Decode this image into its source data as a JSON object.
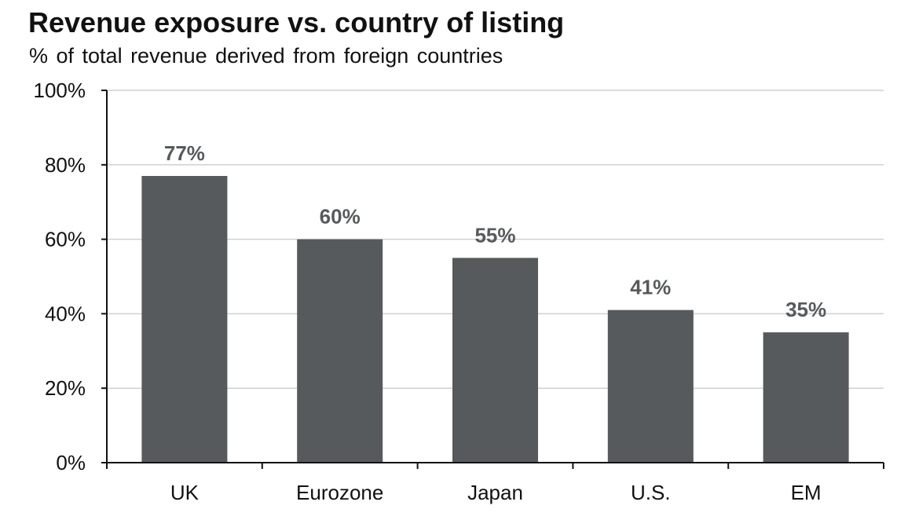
{
  "chart_data": {
    "type": "bar",
    "title": "Revenue exposure vs. country of listing",
    "subtitle": "% of total revenue  derived  from foreign  countries",
    "categories": [
      "UK",
      "Eurozone",
      "Japan",
      "U.S.",
      "EM"
    ],
    "values": [
      77,
      60,
      55,
      41,
      35
    ],
    "data_labels": [
      "77%",
      "60%",
      "55%",
      "41%",
      "35%"
    ],
    "ylim": [
      0,
      100
    ],
    "yticks": [
      0,
      20,
      40,
      60,
      80,
      100
    ],
    "ytick_labels": [
      "0%",
      "20%",
      "40%",
      "60%",
      "80%",
      "100%"
    ],
    "xlabel": "",
    "ylabel": "",
    "grid": true,
    "colors": {
      "bar": "#575a5c",
      "grid": "#d0d0d0",
      "axis": "#111111",
      "label": "#575a5c"
    }
  }
}
